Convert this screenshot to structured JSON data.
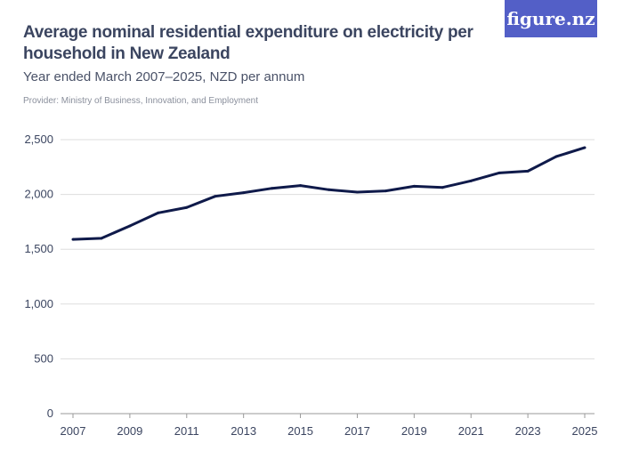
{
  "header": {
    "title": "Average nominal residential expenditure on electricity per household in New Zealand",
    "subtitle": "Year ended March 2007–2025, NZD per annum",
    "provider": "Provider: Ministry of Business, Innovation, and Employment",
    "logo": "figure.nz"
  },
  "colors": {
    "line": "#0f1a4a",
    "grid": "#dddddd",
    "logo_bg": "#535fc7"
  },
  "chart_data": {
    "type": "line",
    "title": "Average nominal residential expenditure on electricity per household in New Zealand",
    "subtitle": "Year ended March 2007–2025, NZD per annum",
    "x": [
      2007,
      2008,
      2009,
      2010,
      2011,
      2012,
      2013,
      2014,
      2015,
      2016,
      2017,
      2018,
      2019,
      2020,
      2021,
      2022,
      2023,
      2024,
      2025
    ],
    "series": [
      {
        "values": [
          1590,
          1600,
          1713,
          1832,
          1881,
          1983,
          2016,
          2056,
          2081,
          2043,
          2021,
          2032,
          2075,
          2064,
          2124,
          2197,
          2213,
          2346,
          2427
        ]
      }
    ],
    "xlim": [
      2007,
      2025
    ],
    "ylim": [
      0,
      2500
    ],
    "x_ticks": [
      "2007",
      "2009",
      "2011",
      "2013",
      "2015",
      "2017",
      "2019",
      "2021",
      "2023",
      "2025"
    ],
    "y_ticks": [
      "0",
      "500",
      "1,000",
      "1,500",
      "2,000",
      "2,500"
    ],
    "grid": "horizontal"
  }
}
